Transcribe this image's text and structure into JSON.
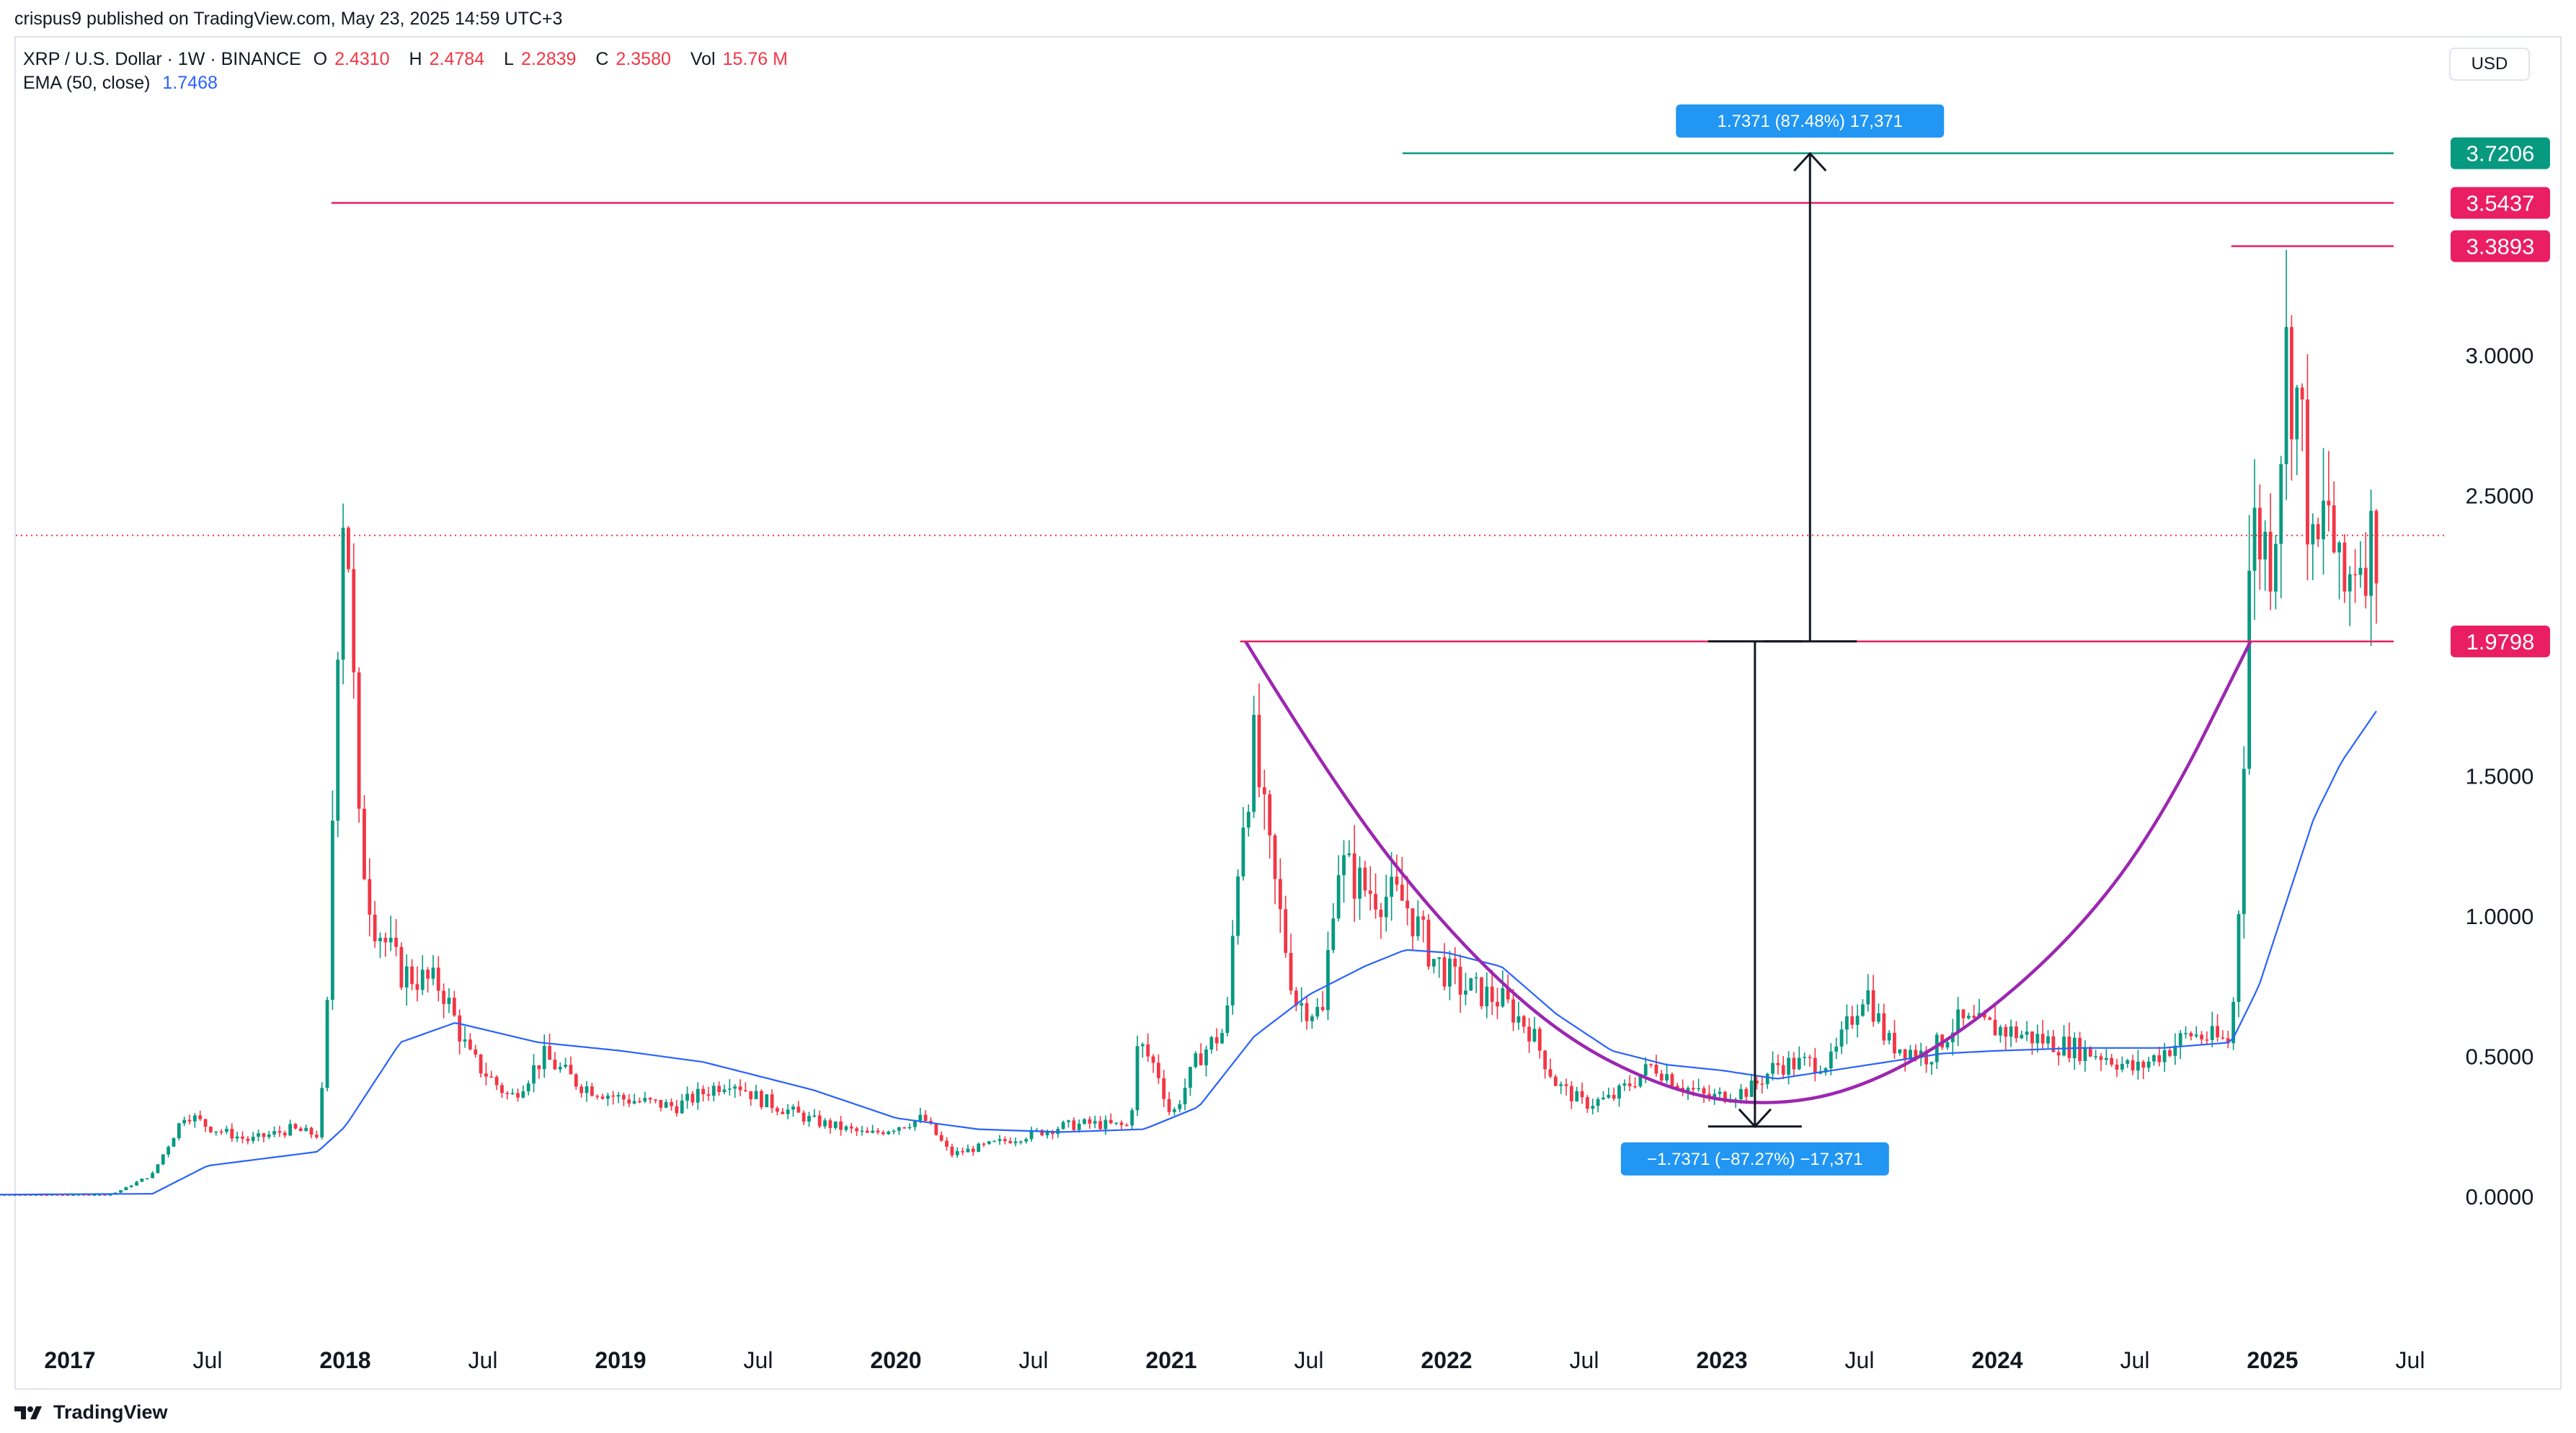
{
  "header": {
    "published": "crispus9 published on TradingView.com, May 23, 2025 14:59 UTC+3"
  },
  "legend": {
    "symbol": "XRP / U.S. Dollar · 1W · BINANCE",
    "o_label": "O",
    "o_value": "2.4310",
    "h_label": "H",
    "h_value": "2.4784",
    "l_label": "L",
    "l_value": "2.2839",
    "c_label": "C",
    "c_value": "2.3580",
    "vol_label": "Vol",
    "vol_value": "15.76 M",
    "ema_label": "EMA (50, close)",
    "ema_value": "1.7468"
  },
  "currency_button": "USD",
  "brand": "TradingView",
  "colors": {
    "up": "#089981",
    "down": "#f23645",
    "ema": "#2962ff",
    "resistance": "#e91e63",
    "target": "#089981",
    "cup": "#9c27b0",
    "measure_box": "#2196f3"
  },
  "chart_data": {
    "type": "candlestick",
    "timeframe": "1W",
    "ylim": [
      -0.5,
      3.9
    ],
    "y_ticks": [
      0.0,
      0.5,
      1.0,
      1.5,
      2.0,
      2.5,
      3.0
    ],
    "y_tick_labels": [
      "0.0000",
      "0.5000",
      "1.0000",
      "1.5000",
      "",
      "2.5000",
      "3.0000"
    ],
    "x_ticks": [
      {
        "t": 2017.0,
        "label": "2017",
        "bold": true
      },
      {
        "t": 2017.5,
        "label": "Jul",
        "bold": false
      },
      {
        "t": 2018.0,
        "label": "2018",
        "bold": true
      },
      {
        "t": 2018.5,
        "label": "Jul",
        "bold": false
      },
      {
        "t": 2019.0,
        "label": "2019",
        "bold": true
      },
      {
        "t": 2019.5,
        "label": "Jul",
        "bold": false
      },
      {
        "t": 2020.0,
        "label": "2020",
        "bold": true
      },
      {
        "t": 2020.5,
        "label": "Jul",
        "bold": false
      },
      {
        "t": 2021.0,
        "label": "2021",
        "bold": true
      },
      {
        "t": 2021.5,
        "label": "Jul",
        "bold": false
      },
      {
        "t": 2022.0,
        "label": "2022",
        "bold": true
      },
      {
        "t": 2022.5,
        "label": "Jul",
        "bold": false
      },
      {
        "t": 2023.0,
        "label": "2023",
        "bold": true
      },
      {
        "t": 2023.5,
        "label": "Jul",
        "bold": false
      },
      {
        "t": 2024.0,
        "label": "2024",
        "bold": true
      },
      {
        "t": 2024.5,
        "label": "Jul",
        "bold": false
      },
      {
        "t": 2025.0,
        "label": "2025",
        "bold": true
      },
      {
        "t": 2025.5,
        "label": "Jul",
        "bold": false
      }
    ],
    "price_keypoints": [
      [
        2016.55,
        0.006
      ],
      [
        2017.15,
        0.007
      ],
      [
        2017.2,
        0.03
      ],
      [
        2017.3,
        0.08
      ],
      [
        2017.42,
        0.3
      ],
      [
        2017.5,
        0.25
      ],
      [
        2017.65,
        0.2
      ],
      [
        2017.8,
        0.24
      ],
      [
        2017.9,
        0.22
      ],
      [
        2017.93,
        0.5
      ],
      [
        2017.98,
        2.3
      ],
      [
        2018.0,
        2.6
      ],
      [
        2018.05,
        1.3
      ],
      [
        2018.1,
        1.0
      ],
      [
        2018.2,
        0.8
      ],
      [
        2018.35,
        0.75
      ],
      [
        2018.45,
        0.5
      ],
      [
        2018.6,
        0.35
      ],
      [
        2018.72,
        0.5
      ],
      [
        2018.85,
        0.4
      ],
      [
        2019.0,
        0.35
      ],
      [
        2019.2,
        0.32
      ],
      [
        2019.4,
        0.42
      ],
      [
        2019.5,
        0.35
      ],
      [
        2019.7,
        0.27
      ],
      [
        2019.9,
        0.22
      ],
      [
        2020.1,
        0.28
      ],
      [
        2020.2,
        0.15
      ],
      [
        2020.4,
        0.2
      ],
      [
        2020.6,
        0.25
      ],
      [
        2020.7,
        0.26
      ],
      [
        2020.85,
        0.25
      ],
      [
        2020.88,
        0.55
      ],
      [
        2020.95,
        0.45
      ],
      [
        2021.0,
        0.28
      ],
      [
        2021.1,
        0.5
      ],
      [
        2021.2,
        0.6
      ],
      [
        2021.25,
        1.3
      ],
      [
        2021.3,
        1.6
      ],
      [
        2021.35,
        1.25
      ],
      [
        2021.45,
        0.7
      ],
      [
        2021.55,
        0.65
      ],
      [
        2021.6,
        1.2
      ],
      [
        2021.7,
        1.1
      ],
      [
        2021.85,
        1.05
      ],
      [
        2021.95,
        0.85
      ],
      [
        2022.05,
        0.75
      ],
      [
        2022.2,
        0.7
      ],
      [
        2022.3,
        0.6
      ],
      [
        2022.4,
        0.4
      ],
      [
        2022.5,
        0.33
      ],
      [
        2022.6,
        0.35
      ],
      [
        2022.75,
        0.47
      ],
      [
        2022.85,
        0.4
      ],
      [
        2022.95,
        0.35
      ],
      [
        2023.1,
        0.38
      ],
      [
        2023.2,
        0.47
      ],
      [
        2023.4,
        0.48
      ],
      [
        2023.52,
        0.75
      ],
      [
        2023.6,
        0.55
      ],
      [
        2023.75,
        0.5
      ],
      [
        2023.85,
        0.62
      ],
      [
        2024.0,
        0.6
      ],
      [
        2024.2,
        0.55
      ],
      [
        2024.4,
        0.5
      ],
      [
        2024.5,
        0.45
      ],
      [
        2024.7,
        0.58
      ],
      [
        2024.85,
        0.55
      ],
      [
        2024.88,
        1.1
      ],
      [
        2024.92,
        2.4
      ],
      [
        2025.0,
        2.3
      ],
      [
        2025.05,
        3.0
      ],
      [
        2025.1,
        2.8
      ],
      [
        2025.15,
        2.2
      ],
      [
        2025.2,
        2.5
      ],
      [
        2025.25,
        2.1
      ],
      [
        2025.3,
        2.3
      ],
      [
        2025.39,
        2.36
      ]
    ],
    "ema_keypoints": [
      [
        2016.55,
        0.006
      ],
      [
        2017.3,
        0.01
      ],
      [
        2017.5,
        0.11
      ],
      [
        2017.9,
        0.16
      ],
      [
        2018.0,
        0.25
      ],
      [
        2018.2,
        0.55
      ],
      [
        2018.4,
        0.62
      ],
      [
        2018.7,
        0.55
      ],
      [
        2019.0,
        0.52
      ],
      [
        2019.3,
        0.48
      ],
      [
        2019.7,
        0.38
      ],
      [
        2020.0,
        0.28
      ],
      [
        2020.3,
        0.24
      ],
      [
        2020.6,
        0.23
      ],
      [
        2020.9,
        0.24
      ],
      [
        2021.1,
        0.32
      ],
      [
        2021.3,
        0.57
      ],
      [
        2021.5,
        0.72
      ],
      [
        2021.7,
        0.82
      ],
      [
        2021.85,
        0.88
      ],
      [
        2022.0,
        0.87
      ],
      [
        2022.2,
        0.82
      ],
      [
        2022.4,
        0.65
      ],
      [
        2022.6,
        0.52
      ],
      [
        2022.8,
        0.47
      ],
      [
        2023.0,
        0.45
      ],
      [
        2023.2,
        0.42
      ],
      [
        2023.4,
        0.45
      ],
      [
        2023.6,
        0.48
      ],
      [
        2023.8,
        0.51
      ],
      [
        2024.0,
        0.52
      ],
      [
        2024.3,
        0.53
      ],
      [
        2024.6,
        0.53
      ],
      [
        2024.85,
        0.55
      ],
      [
        2024.95,
        0.75
      ],
      [
        2025.05,
        1.05
      ],
      [
        2025.15,
        1.35
      ],
      [
        2025.25,
        1.55
      ],
      [
        2025.39,
        1.75
      ]
    ],
    "current_price": 2.358,
    "resistance_lines": [
      {
        "t0": 2017.95,
        "t1": 2025.44,
        "price": 3.5437,
        "label": "3.5437"
      },
      {
        "t0": 2024.85,
        "t1": 2025.44,
        "price": 3.3893,
        "label": "3.3893"
      },
      {
        "t0": 2021.25,
        "t1": 2025.44,
        "price": 1.9798,
        "label": "1.9798"
      },
      {
        "t0": 2021.84,
        "t1": 2025.44,
        "price": 3.7206,
        "label": "3.7206"
      }
    ],
    "cup_points": [
      [
        2021.27,
        1.98
      ],
      [
        2021.6,
        1.45
      ],
      [
        2022.0,
        0.95
      ],
      [
        2022.4,
        0.58
      ],
      [
        2022.8,
        0.38
      ],
      [
        2023.15,
        0.32
      ],
      [
        2023.5,
        0.38
      ],
      [
        2023.9,
        0.6
      ],
      [
        2024.3,
        0.95
      ],
      [
        2024.6,
        1.35
      ],
      [
        2024.92,
        1.98
      ]
    ],
    "measures": [
      {
        "t": 2023.12,
        "from": 1.98,
        "to": 0.25,
        "label": "−1.7371 (−87.27%) −17,371"
      },
      {
        "t": 2023.32,
        "from": 1.98,
        "to": 3.72,
        "label": "1.7371 (87.48%) 17,371"
      }
    ]
  }
}
